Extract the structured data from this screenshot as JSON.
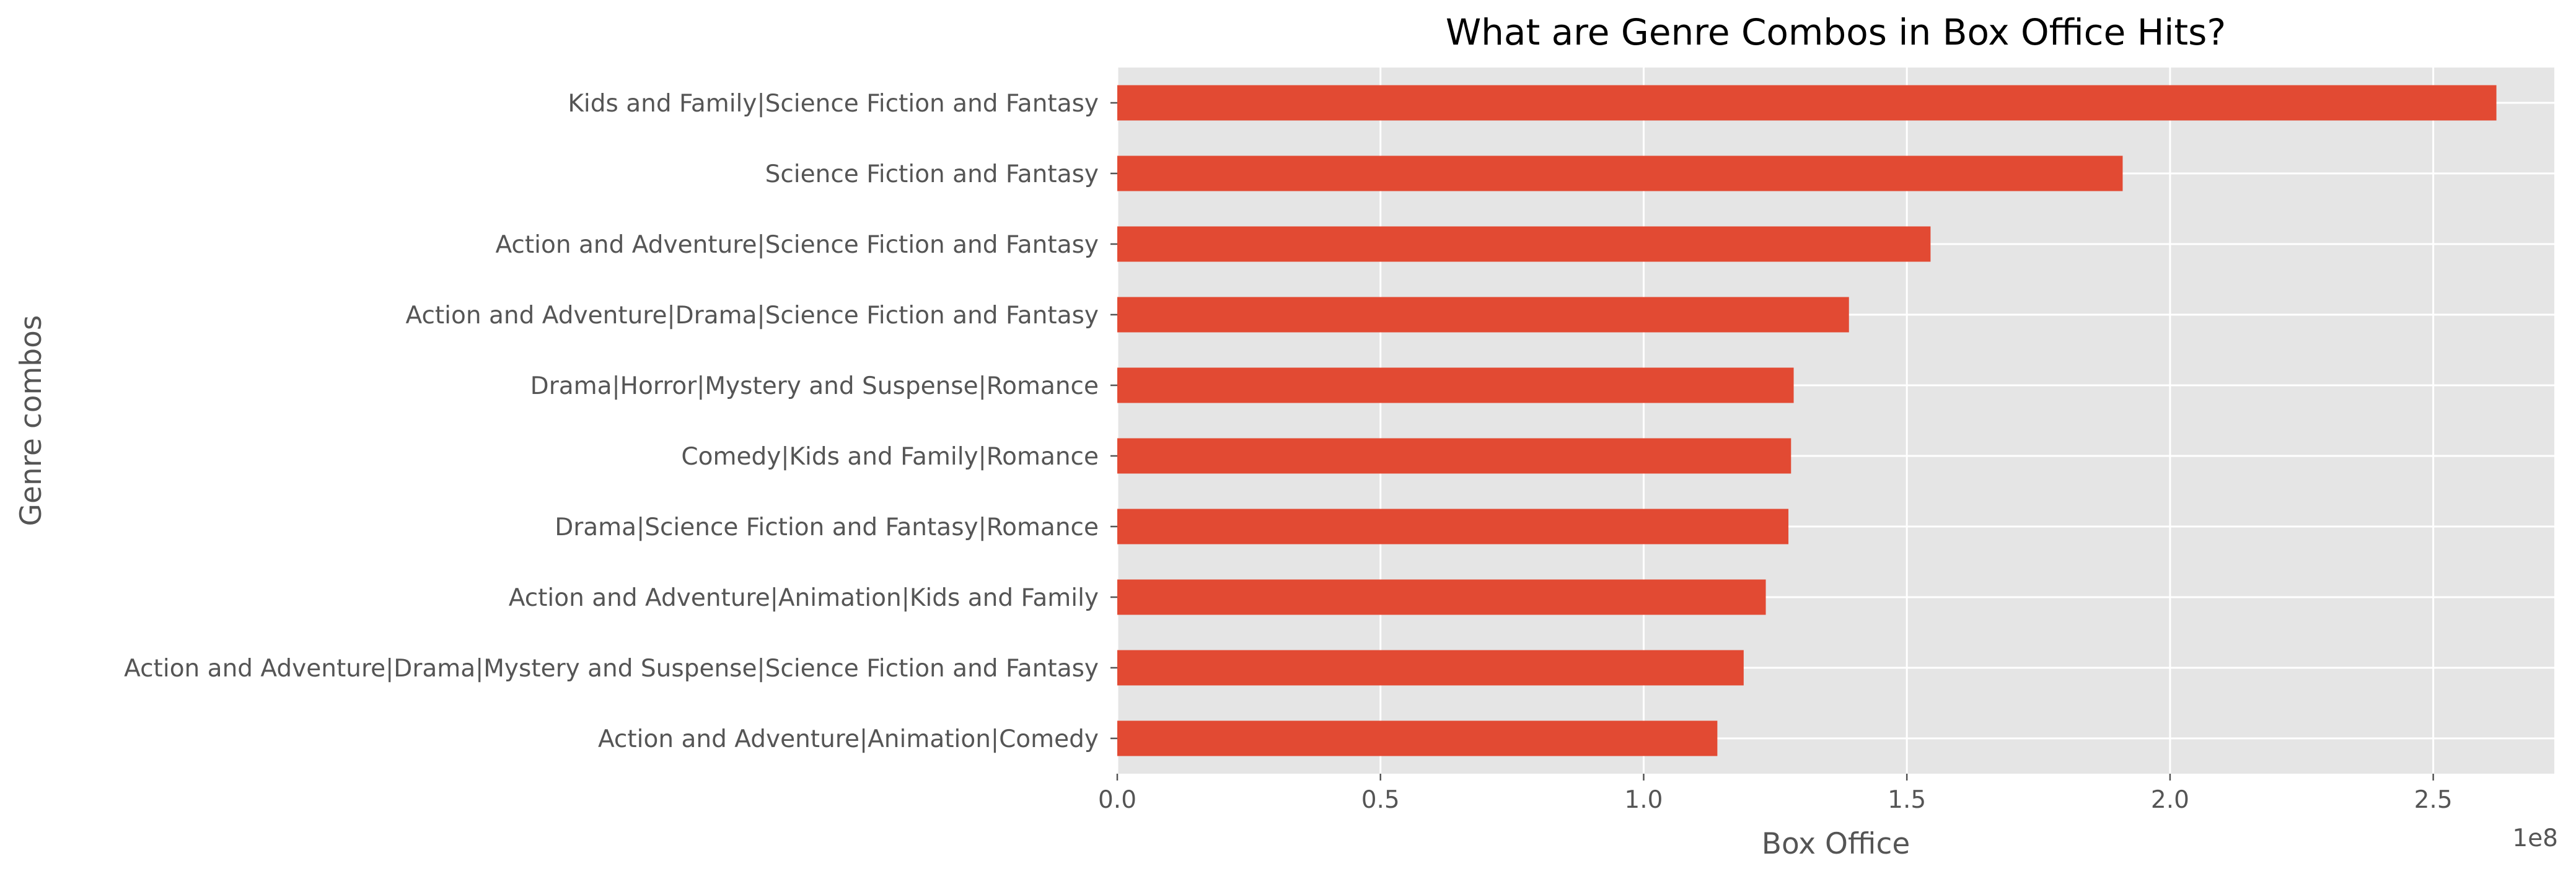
{
  "chart_data": {
    "type": "bar",
    "orientation": "horizontal",
    "title": "What are Genre Combos in Box Office Hits?",
    "xlabel": "Box Office",
    "ylabel": "Genre combos",
    "x_offset_text": "1e8",
    "xlim": [
      0,
      2.73
    ],
    "xticks": [
      0.0,
      0.5,
      1.0,
      1.5,
      2.0,
      2.5
    ],
    "xtick_labels": [
      "0.0",
      "0.5",
      "1.0",
      "1.5",
      "2.0",
      "2.5"
    ],
    "grid": true,
    "bar_color": "#E24A33",
    "background_color": "#E5E5E5",
    "categories": [
      "Kids and Family|Science Fiction and Fantasy",
      "Science Fiction and Fantasy",
      "Action and Adventure|Science Fiction and Fantasy",
      "Action and Adventure|Drama|Science Fiction and Fantasy",
      "Drama|Horror|Mystery and Suspense|Romance",
      "Comedy|Kids and Family|Romance",
      "Drama|Science Fiction and Fantasy|Romance",
      "Action and Adventure|Animation|Kids and Family",
      "Action and Adventure|Drama|Mystery and Suspense|Science Fiction and Fantasy",
      "Action and Adventure|Animation|Comedy"
    ],
    "values": [
      2.62,
      1.91,
      1.545,
      1.39,
      1.285,
      1.28,
      1.275,
      1.232,
      1.19,
      1.14
    ]
  }
}
